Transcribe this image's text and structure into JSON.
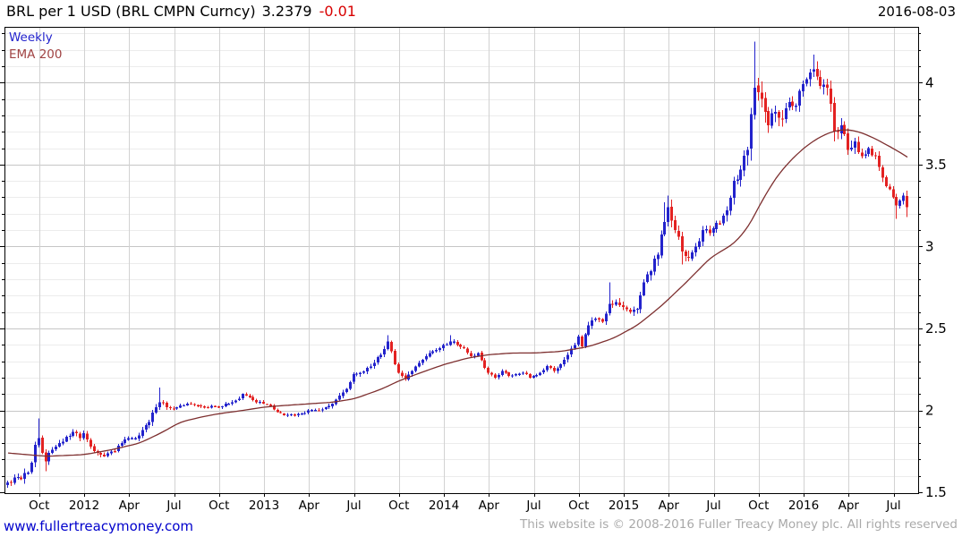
{
  "header": {
    "title": "BRL per 1 USD (BRL CMPN Curncy)",
    "last_price": "3.2379",
    "change": "-0.01",
    "date": "2016-08-03"
  },
  "legend": [
    {
      "label": "Weekly",
      "color": "#2323cc"
    },
    {
      "label": "EMA 200",
      "color": "#a04343"
    }
  ],
  "footer": {
    "site_link": "www.fullertreacymoney.com",
    "copyright": "This website is © 2008-2016 Fuller Treacy Money plc. All rights reserved"
  },
  "chart_data": {
    "type": "candlestick",
    "title": "BRL per 1 USD (BRL CMPN Curncy)",
    "frequency": "weekly",
    "overlay": "EMA 200",
    "as_of": "2016-08-03",
    "last_price": 3.2379,
    "change": -0.01,
    "x_start": "2011-08-01",
    "x_end": "2016-08-01",
    "weeks": 261,
    "ylim": [
      1.495,
      4.34
    ],
    "y_major_ticks": [
      1.5,
      2,
      2.5,
      3,
      3.5,
      4
    ],
    "y_minor_step": 0.1,
    "grid": true,
    "legend_position": "top-left",
    "x_ticks": [
      [
        9,
        "Oct"
      ],
      [
        22,
        "2012"
      ],
      [
        35,
        "Apr"
      ],
      [
        48,
        "Jul"
      ],
      [
        61,
        "Oct"
      ],
      [
        74,
        "2013"
      ],
      [
        87,
        "Apr"
      ],
      [
        100,
        "Jul"
      ],
      [
        113,
        "Oct"
      ],
      [
        126,
        "2014"
      ],
      [
        139,
        "Apr"
      ],
      [
        152,
        "Jul"
      ],
      [
        165,
        "Oct"
      ],
      [
        178,
        "2015"
      ],
      [
        191,
        "Apr"
      ],
      [
        204,
        "Jul"
      ],
      [
        217,
        "Oct"
      ],
      [
        230,
        "2016"
      ],
      [
        243,
        "Apr"
      ],
      [
        256,
        "Jul"
      ]
    ],
    "close_anchors": [
      [
        0,
        1.56
      ],
      [
        2,
        1.59
      ],
      [
        4,
        1.58
      ],
      [
        6,
        1.62
      ],
      [
        7,
        1.68
      ],
      [
        8,
        1.79
      ],
      [
        9,
        1.83
      ],
      [
        10,
        1.74
      ],
      [
        11,
        1.69
      ],
      [
        13,
        1.76
      ],
      [
        15,
        1.8
      ],
      [
        17,
        1.84
      ],
      [
        19,
        1.87
      ],
      [
        21,
        1.83
      ],
      [
        22,
        1.86
      ],
      [
        24,
        1.78
      ],
      [
        26,
        1.74
      ],
      [
        28,
        1.72
      ],
      [
        31,
        1.75
      ],
      [
        33,
        1.8
      ],
      [
        35,
        1.83
      ],
      [
        37,
        1.83
      ],
      [
        39,
        1.88
      ],
      [
        41,
        1.93
      ],
      [
        43,
        2.02
      ],
      [
        44,
        2.05
      ],
      [
        46,
        2.02
      ],
      [
        48,
        2.01
      ],
      [
        50,
        2.03
      ],
      [
        53,
        2.04
      ],
      [
        57,
        2.02
      ],
      [
        61,
        2.02
      ],
      [
        64,
        2.04
      ],
      [
        66,
        2.06
      ],
      [
        68,
        2.1
      ],
      [
        70,
        2.08
      ],
      [
        72,
        2.05
      ],
      [
        74,
        2.04
      ],
      [
        76,
        2.03
      ],
      [
        78,
        1.99
      ],
      [
        80,
        1.97
      ],
      [
        83,
        1.97
      ],
      [
        85,
        1.98
      ],
      [
        87,
        2.0
      ],
      [
        90,
        2.0
      ],
      [
        92,
        2.02
      ],
      [
        94,
        2.04
      ],
      [
        96,
        2.09
      ],
      [
        98,
        2.13
      ],
      [
        100,
        2.22
      ],
      [
        102,
        2.23
      ],
      [
        104,
        2.26
      ],
      [
        106,
        2.29
      ],
      [
        108,
        2.34
      ],
      [
        110,
        2.42
      ],
      [
        111,
        2.36
      ],
      [
        112,
        2.28
      ],
      [
        113,
        2.23
      ],
      [
        115,
        2.19
      ],
      [
        117,
        2.24
      ],
      [
        119,
        2.29
      ],
      [
        121,
        2.33
      ],
      [
        123,
        2.36
      ],
      [
        125,
        2.38
      ],
      [
        126,
        2.4
      ],
      [
        128,
        2.42
      ],
      [
        130,
        2.4
      ],
      [
        132,
        2.38
      ],
      [
        134,
        2.33
      ],
      [
        136,
        2.35
      ],
      [
        138,
        2.26
      ],
      [
        139,
        2.23
      ],
      [
        141,
        2.2
      ],
      [
        143,
        2.24
      ],
      [
        145,
        2.21
      ],
      [
        147,
        2.22
      ],
      [
        149,
        2.23
      ],
      [
        151,
        2.2
      ],
      [
        152,
        2.21
      ],
      [
        154,
        2.23
      ],
      [
        156,
        2.27
      ],
      [
        158,
        2.24
      ],
      [
        160,
        2.28
      ],
      [
        162,
        2.34
      ],
      [
        164,
        2.4
      ],
      [
        165,
        2.45
      ],
      [
        166,
        2.39
      ],
      [
        168,
        2.52
      ],
      [
        170,
        2.56
      ],
      [
        172,
        2.54
      ],
      [
        174,
        2.65
      ],
      [
        176,
        2.66
      ],
      [
        178,
        2.63
      ],
      [
        180,
        2.6
      ],
      [
        182,
        2.62
      ],
      [
        184,
        2.78
      ],
      [
        186,
        2.85
      ],
      [
        188,
        2.95
      ],
      [
        190,
        3.15
      ],
      [
        191,
        3.24
      ],
      [
        193,
        3.1
      ],
      [
        195,
        2.97
      ],
      [
        197,
        2.93
      ],
      [
        199,
        3.0
      ],
      [
        201,
        3.1
      ],
      [
        203,
        3.08
      ],
      [
        204,
        3.11
      ],
      [
        206,
        3.14
      ],
      [
        208,
        3.22
      ],
      [
        210,
        3.4
      ],
      [
        212,
        3.47
      ],
      [
        214,
        3.59
      ],
      [
        216,
        3.97
      ],
      [
        218,
        3.9
      ],
      [
        220,
        3.74
      ],
      [
        222,
        3.82
      ],
      [
        224,
        3.78
      ],
      [
        226,
        3.88
      ],
      [
        228,
        3.86
      ],
      [
        229,
        3.95
      ],
      [
        231,
        4.02
      ],
      [
        233,
        4.08
      ],
      [
        235,
        3.98
      ],
      [
        237,
        3.97
      ],
      [
        239,
        3.7
      ],
      [
        241,
        3.74
      ],
      [
        243,
        3.59
      ],
      [
        245,
        3.64
      ],
      [
        247,
        3.55
      ],
      [
        249,
        3.6
      ],
      [
        251,
        3.55
      ],
      [
        253,
        3.42
      ],
      [
        255,
        3.35
      ],
      [
        256,
        3.3
      ],
      [
        257,
        3.25
      ],
      [
        258,
        3.28
      ],
      [
        259,
        3.31
      ],
      [
        260,
        3.24
      ]
    ],
    "ema_anchors": [
      [
        0,
        1.74
      ],
      [
        11,
        1.72
      ],
      [
        22,
        1.73
      ],
      [
        30,
        1.76
      ],
      [
        38,
        1.8
      ],
      [
        44,
        1.86
      ],
      [
        50,
        1.93
      ],
      [
        56,
        1.96
      ],
      [
        61,
        1.98
      ],
      [
        68,
        2.0
      ],
      [
        74,
        2.02
      ],
      [
        80,
        2.03
      ],
      [
        87,
        2.04
      ],
      [
        94,
        2.05
      ],
      [
        100,
        2.07
      ],
      [
        108,
        2.13
      ],
      [
        113,
        2.18
      ],
      [
        118,
        2.22
      ],
      [
        126,
        2.28
      ],
      [
        133,
        2.32
      ],
      [
        139,
        2.34
      ],
      [
        146,
        2.35
      ],
      [
        152,
        2.35
      ],
      [
        160,
        2.36
      ],
      [
        168,
        2.39
      ],
      [
        175,
        2.44
      ],
      [
        182,
        2.52
      ],
      [
        189,
        2.64
      ],
      [
        196,
        2.78
      ],
      [
        203,
        2.93
      ],
      [
        210,
        3.02
      ],
      [
        214,
        3.12
      ],
      [
        218,
        3.28
      ],
      [
        222,
        3.42
      ],
      [
        226,
        3.52
      ],
      [
        230,
        3.6
      ],
      [
        234,
        3.66
      ],
      [
        238,
        3.7
      ],
      [
        242,
        3.715
      ],
      [
        246,
        3.7
      ],
      [
        250,
        3.665
      ],
      [
        254,
        3.62
      ],
      [
        257,
        3.585
      ],
      [
        260,
        3.545
      ]
    ],
    "volatility_anchors": [
      [
        0,
        0.028
      ],
      [
        8,
        0.038
      ],
      [
        12,
        0.032
      ],
      [
        20,
        0.022
      ],
      [
        28,
        0.018
      ],
      [
        36,
        0.02
      ],
      [
        42,
        0.028
      ],
      [
        46,
        0.022
      ],
      [
        52,
        0.012
      ],
      [
        60,
        0.012
      ],
      [
        66,
        0.016
      ],
      [
        72,
        0.014
      ],
      [
        80,
        0.014
      ],
      [
        88,
        0.013
      ],
      [
        96,
        0.02
      ],
      [
        100,
        0.026
      ],
      [
        108,
        0.026
      ],
      [
        112,
        0.024
      ],
      [
        120,
        0.018
      ],
      [
        128,
        0.02
      ],
      [
        136,
        0.018
      ],
      [
        144,
        0.013
      ],
      [
        152,
        0.012
      ],
      [
        158,
        0.016
      ],
      [
        164,
        0.022
      ],
      [
        170,
        0.026
      ],
      [
        176,
        0.032
      ],
      [
        182,
        0.03
      ],
      [
        188,
        0.05
      ],
      [
        192,
        0.055
      ],
      [
        196,
        0.045
      ],
      [
        202,
        0.035
      ],
      [
        208,
        0.045
      ],
      [
        212,
        0.055
      ],
      [
        216,
        0.105
      ],
      [
        220,
        0.07
      ],
      [
        224,
        0.06
      ],
      [
        228,
        0.055
      ],
      [
        232,
        0.055
      ],
      [
        236,
        0.06
      ],
      [
        240,
        0.065
      ],
      [
        244,
        0.055
      ],
      [
        248,
        0.042
      ],
      [
        252,
        0.04
      ],
      [
        256,
        0.035
      ],
      [
        260,
        0.03
      ]
    ],
    "wick_overrides": {
      "9": {
        "h": 1.95
      },
      "11": {
        "l": 1.63
      },
      "44": {
        "h": 2.14
      },
      "110": {
        "h": 2.46
      },
      "128": {
        "h": 2.46
      },
      "174": {
        "h": 2.78
      },
      "190": {
        "h": 3.27
      },
      "191": {
        "h": 3.31
      },
      "195": {
        "l": 2.89
      },
      "216": {
        "h": 4.25
      },
      "233": {
        "h": 4.17
      },
      "239": {
        "l": 3.64
      },
      "257": {
        "l": 3.17
      },
      "260": {
        "h": 3.34,
        "l": 3.18
      }
    },
    "colors": {
      "up": "#2323cc",
      "down": "#e32222",
      "ema": "#7d2f2f",
      "grid_minor": "#ececec",
      "grid_major": "#c6c6c6",
      "grid_vertical": "#d2d2d2",
      "axis": "#000000",
      "label": "#000000"
    },
    "seed": 20160803
  }
}
